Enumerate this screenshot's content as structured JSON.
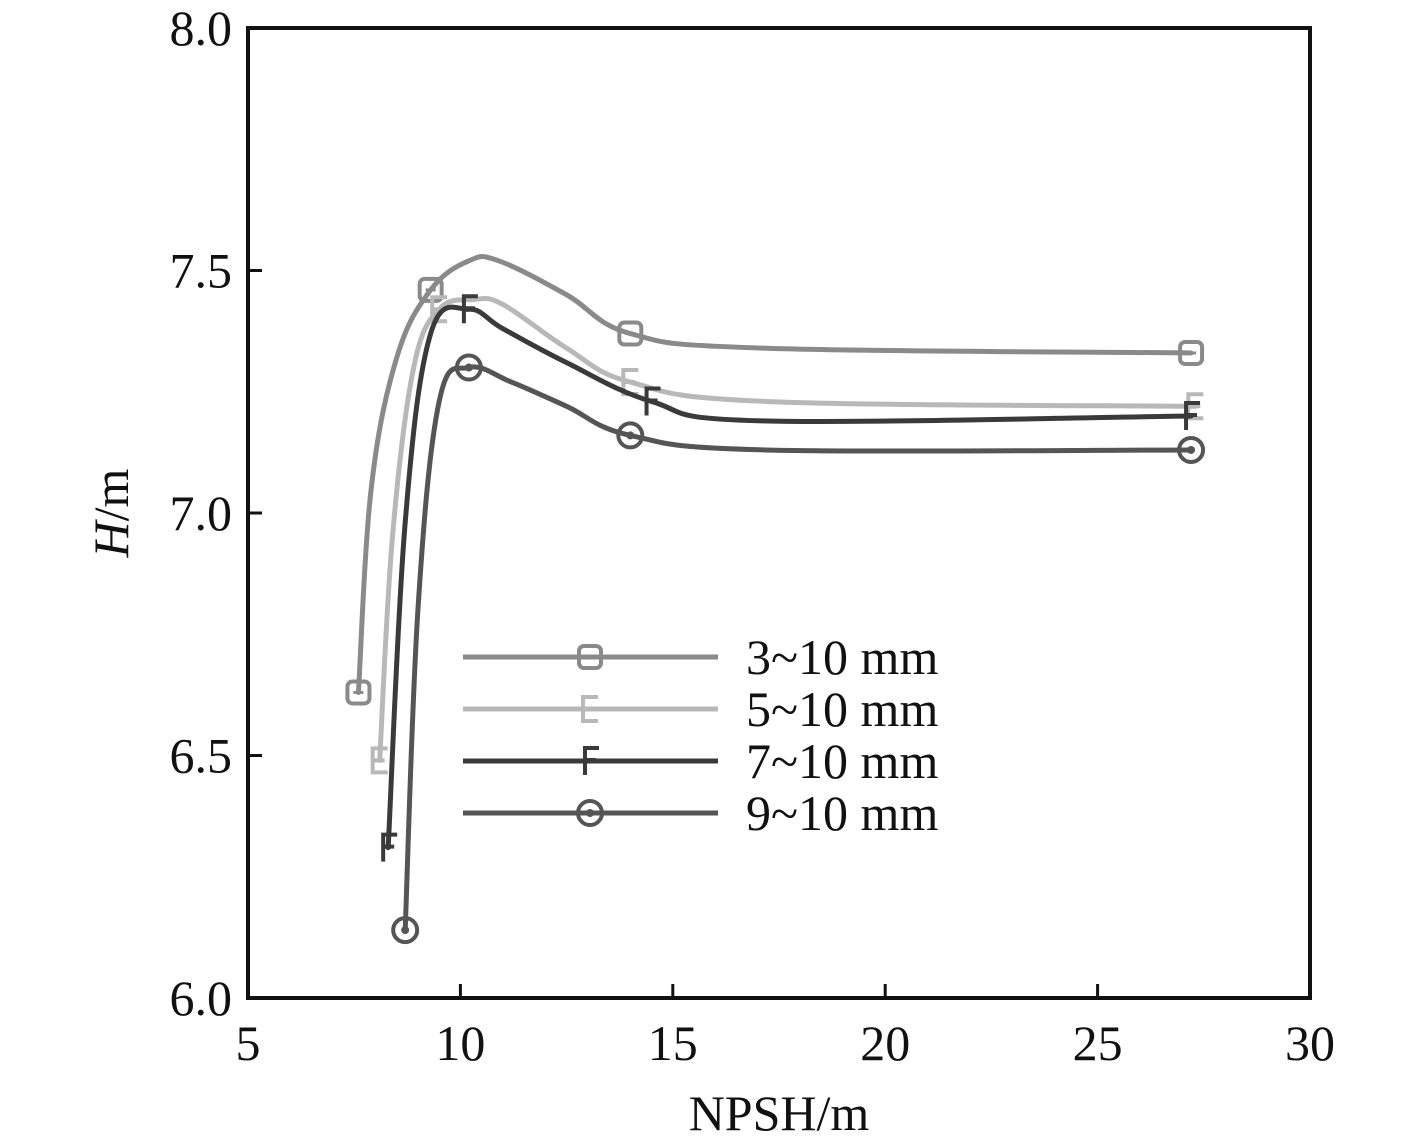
{
  "chart_data": {
    "type": "line",
    "xlabel": "NPSH/m",
    "ylabel_italic": "H",
    "ylabel_rest": "/m",
    "xlim": [
      5,
      30
    ],
    "ylim": [
      6.0,
      8.0
    ],
    "x_ticks": [
      "5",
      "10",
      "15",
      "20",
      "25",
      "30"
    ],
    "y_ticks": [
      "6.0",
      "6.5",
      "7.0",
      "7.5",
      "8.0"
    ],
    "grid": false,
    "legend_position": "center",
    "series": [
      {
        "name": "3~10 mm",
        "color": "#8a8a8a",
        "marker": "square",
        "x": [
          7.6,
          7.9,
          8.5,
          9.3,
          10.2,
          10.9,
          12.5,
          14.0,
          17.1,
          27.2
        ],
        "y": [
          6.63,
          7.05,
          7.32,
          7.46,
          7.52,
          7.52,
          7.45,
          7.37,
          7.34,
          7.33
        ]
      },
      {
        "name": "5~10 mm",
        "color": "#b8b8b8",
        "marker": "e",
        "x": [
          8.1,
          8.4,
          8.9,
          9.5,
          10.3,
          11.0,
          12.5,
          14.0,
          17.2,
          27.3
        ],
        "y": [
          6.49,
          6.95,
          7.3,
          7.42,
          7.44,
          7.43,
          7.34,
          7.27,
          7.23,
          7.22
        ]
      },
      {
        "name": "7~10 mm",
        "color": "#3a3a3a",
        "marker": "f",
        "x": [
          8.3,
          8.7,
          9.3,
          10.2,
          11.0,
          12.5,
          14.5,
          17.1,
          27.2
        ],
        "y": [
          6.31,
          6.98,
          7.37,
          7.42,
          7.38,
          7.31,
          7.23,
          7.19,
          7.2
        ]
      },
      {
        "name": "9~10 mm",
        "color": "#555555",
        "marker": "circle",
        "x": [
          8.7,
          9.0,
          9.5,
          10.2,
          11.2,
          12.5,
          14.0,
          17.2,
          27.2
        ],
        "y": [
          6.14,
          6.8,
          7.23,
          7.3,
          7.27,
          7.22,
          7.16,
          7.13,
          7.13
        ]
      }
    ]
  }
}
